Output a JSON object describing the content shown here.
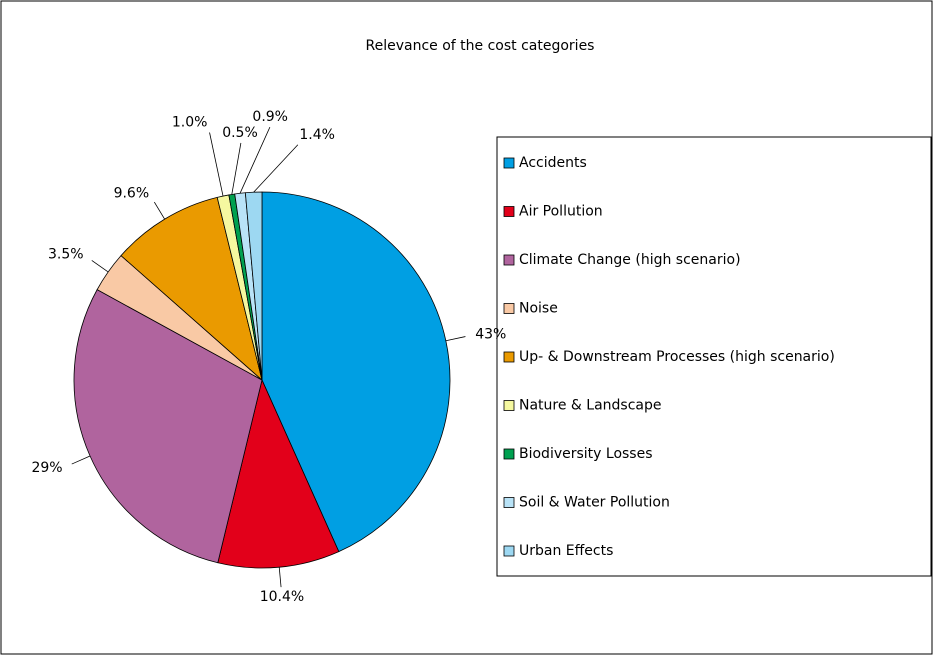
{
  "chart_data": {
    "type": "pie",
    "title": "Relevance of the cost categories",
    "categories": [
      "Accidents",
      "Air Pollution",
      "Climate Change (high scenario)",
      "Noise",
      "Up- & Downstream Processes (high scenario)",
      "Nature & Landscape",
      "Biodiversity Losses",
      "Soil & Water Pollution",
      "Urban Effects"
    ],
    "values": [
      43,
      10.4,
      29,
      3.5,
      9.6,
      1.0,
      0.5,
      0.9,
      1.4
    ],
    "value_labels": [
      "43%",
      "10.4%",
      "29%",
      "3.5%",
      "9.6%",
      "1.0%",
      "0.5%",
      "0.9%",
      "1.4%"
    ],
    "colors": [
      "#009fe3",
      "#e2001a",
      "#b0649e",
      "#f9c9a5",
      "#ea9a00",
      "#f5f8a0",
      "#00a050",
      "#b9e3f7",
      "#9dd8f2"
    ],
    "legend": "right"
  }
}
